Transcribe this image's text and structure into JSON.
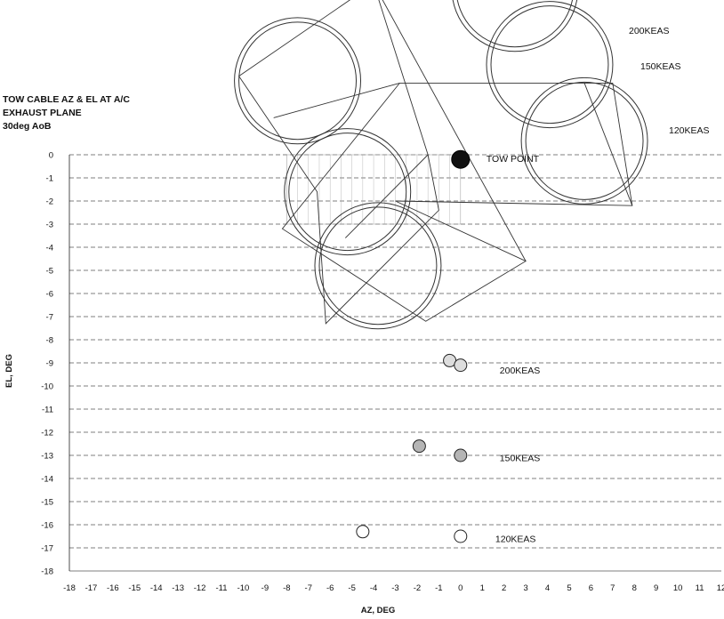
{
  "chart_data": {
    "type": "scatter",
    "title_lines": [
      "TOW CABLE AZ & EL AT A/C",
      "EXHAUST PLANE",
      "30deg AoB"
    ],
    "xlabel": "AZ, DEG",
    "ylabel": "EL, DEG",
    "xlim": [
      -18,
      12
    ],
    "ylim": [
      -18,
      0
    ],
    "xticks": [
      -18,
      -17,
      -16,
      -15,
      -14,
      -13,
      -12,
      -11,
      -10,
      -9,
      -8,
      -7,
      -6,
      -5,
      -4,
      -3,
      -2,
      -1,
      0,
      1,
      2,
      3,
      4,
      5,
      6,
      7,
      8,
      9,
      10,
      11,
      12
    ],
    "yticks": [
      0,
      -1,
      -2,
      -3,
      -4,
      -5,
      -6,
      -7,
      -8,
      -9,
      -10,
      -11,
      -12,
      -13,
      -14,
      -15,
      -16,
      -17,
      -18
    ],
    "grid": true,
    "tow_point": {
      "x": 0,
      "y": -0.2,
      "label": "TOW POINT"
    },
    "series": [
      {
        "name": "200KEAS",
        "points": [
          {
            "x": -0.5,
            "y": -8.9
          },
          {
            "x": 0,
            "y": -9.1
          }
        ],
        "fill": "#dddddd"
      },
      {
        "name": "150KEAS",
        "points": [
          {
            "x": -1.9,
            "y": -12.6
          },
          {
            "x": 0,
            "y": -13.0
          }
        ],
        "fill": "#b5b5b5"
      },
      {
        "name": "120KEAS",
        "points": [
          {
            "x": -4.5,
            "y": -16.3
          },
          {
            "x": 0,
            "y": -16.5
          }
        ],
        "fill": "#ffffff"
      }
    ],
    "annotations": [
      {
        "text": "200KEAS",
        "x": 1.8,
        "y": -9.3
      },
      {
        "text": "150KEAS",
        "x": 1.8,
        "y": -13.1
      },
      {
        "text": "120KEAS",
        "x": 1.6,
        "y": -16.6
      }
    ],
    "top_labels": [
      "200KEAS",
      "150KEAS",
      "120KEAS"
    ],
    "envelope_circles": [
      {
        "x": -7.5,
        "y": 3.2,
        "r": 2.7
      },
      {
        "x": -5.2,
        "y": -1.6,
        "r": 2.7
      },
      {
        "x": -3.8,
        "y": -4.8,
        "r": 2.7
      },
      {
        "x": 2.5,
        "y": 7.2,
        "r": 2.7
      },
      {
        "x": 4.1,
        "y": 3.9,
        "r": 2.7
      },
      {
        "x": 5.7,
        "y": 0.6,
        "r": 2.7
      }
    ]
  }
}
